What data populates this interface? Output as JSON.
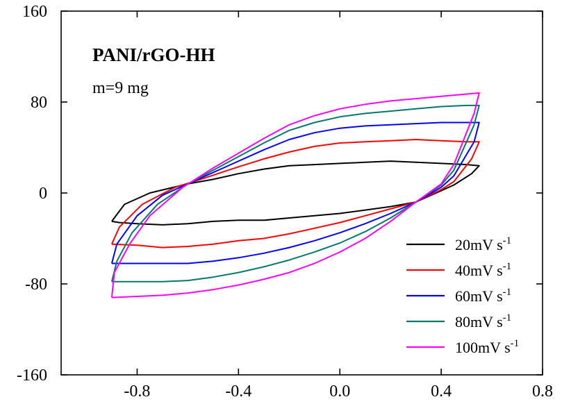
{
  "chart_data": {
    "type": "line",
    "title": "PANI/rGO-HH",
    "subtitle": "m=9 mg",
    "xlabel": "",
    "ylabel": "",
    "xlim": [
      -1.1,
      0.8
    ],
    "ylim": [
      -160,
      160
    ],
    "xticks": [
      -0.8,
      -0.4,
      0.0,
      0.4,
      0.8
    ],
    "xtick_labels": [
      "-0.8",
      "-0.4",
      "0.0",
      "0.4",
      "0.8"
    ],
    "yticks": [
      -160,
      -80,
      0,
      80,
      160
    ],
    "ytick_labels": [
      "-160",
      "-80",
      "0",
      "80",
      "160"
    ],
    "grid": false,
    "legend_position": "bottom-right",
    "series": [
      {
        "name": "20mV s",
        "superscript": "-1",
        "color": "#000000",
        "x": [
          -0.9,
          -0.85,
          -0.75,
          -0.6,
          -0.5,
          -0.4,
          -0.3,
          -0.2,
          -0.1,
          0.0,
          0.1,
          0.2,
          0.3,
          0.4,
          0.5,
          0.55,
          0.52,
          0.45,
          0.4,
          0.3,
          0.2,
          0.1,
          0.0,
          -0.1,
          -0.2,
          -0.3,
          -0.4,
          -0.5,
          -0.6,
          -0.7,
          -0.8,
          -0.87,
          -0.9
        ],
        "y": [
          -25,
          -10,
          0,
          8,
          12,
          17,
          21,
          24,
          25,
          26,
          27,
          28,
          27,
          26,
          25,
          24,
          17,
          7,
          2,
          -8,
          -12,
          -15,
          -18,
          -20,
          -22,
          -24,
          -24,
          -25,
          -27,
          -28,
          -27,
          -26,
          -25
        ]
      },
      {
        "name": "40mV s",
        "superscript": "-1",
        "color": "#ff0000",
        "x": [
          -0.9,
          -0.87,
          -0.78,
          -0.65,
          -0.55,
          -0.4,
          -0.3,
          -0.2,
          -0.1,
          0.0,
          0.1,
          0.2,
          0.3,
          0.4,
          0.5,
          0.55,
          0.52,
          0.45,
          0.4,
          0.3,
          0.2,
          0.1,
          0.0,
          -0.1,
          -0.2,
          -0.3,
          -0.4,
          -0.5,
          -0.6,
          -0.7,
          -0.8,
          -0.9
        ],
        "y": [
          -45,
          -30,
          -10,
          5,
          12,
          23,
          30,
          36,
          41,
          44,
          45,
          46,
          47,
          46,
          45,
          45,
          30,
          10,
          3,
          -8,
          -14,
          -20,
          -26,
          -31,
          -36,
          -40,
          -42,
          -45,
          -47,
          -48,
          -46,
          -45
        ]
      },
      {
        "name": "60mV s",
        "superscript": "-1",
        "color": "#0000ff",
        "x": [
          -0.9,
          -0.88,
          -0.8,
          -0.7,
          -0.6,
          -0.5,
          -0.4,
          -0.3,
          -0.2,
          -0.1,
          0.0,
          0.1,
          0.2,
          0.3,
          0.4,
          0.5,
          0.55,
          0.53,
          0.45,
          0.4,
          0.3,
          0.2,
          0.1,
          0.0,
          -0.1,
          -0.2,
          -0.3,
          -0.4,
          -0.5,
          -0.6,
          -0.7,
          -0.8,
          -0.9
        ],
        "y": [
          -62,
          -45,
          -20,
          -2,
          8,
          18,
          28,
          38,
          47,
          53,
          57,
          59,
          60,
          61,
          62,
          62,
          62,
          45,
          15,
          5,
          -8,
          -18,
          -27,
          -35,
          -42,
          -48,
          -53,
          -57,
          -60,
          -62,
          -62,
          -62,
          -62
        ]
      },
      {
        "name": "80mV s",
        "superscript": "-1",
        "color": "#00796b",
        "x": [
          -0.9,
          -0.88,
          -0.82,
          -0.72,
          -0.6,
          -0.5,
          -0.4,
          -0.3,
          -0.2,
          -0.1,
          0.0,
          0.1,
          0.2,
          0.3,
          0.4,
          0.5,
          0.55,
          0.53,
          0.45,
          0.4,
          0.3,
          0.2,
          0.1,
          0.0,
          -0.1,
          -0.2,
          -0.3,
          -0.4,
          -0.5,
          -0.6,
          -0.7,
          -0.8,
          -0.9
        ],
        "y": [
          -78,
          -60,
          -35,
          -10,
          8,
          20,
          32,
          44,
          55,
          62,
          67,
          70,
          72,
          74,
          76,
          77,
          77,
          60,
          20,
          7,
          -8,
          -22,
          -34,
          -44,
          -52,
          -59,
          -65,
          -70,
          -74,
          -77,
          -78,
          -78,
          -78
        ]
      },
      {
        "name": "100mV s",
        "superscript": "-1",
        "color": "#ff00ff",
        "x": [
          -0.9,
          -0.89,
          -0.83,
          -0.75,
          -0.62,
          -0.5,
          -0.4,
          -0.3,
          -0.2,
          -0.1,
          0.0,
          0.1,
          0.2,
          0.3,
          0.4,
          0.5,
          0.55,
          0.53,
          0.45,
          0.4,
          0.3,
          0.2,
          0.1,
          0.0,
          -0.1,
          -0.2,
          -0.3,
          -0.4,
          -0.5,
          -0.6,
          -0.7,
          -0.8,
          -0.9
        ],
        "y": [
          -92,
          -70,
          -45,
          -20,
          5,
          22,
          35,
          48,
          60,
          68,
          74,
          78,
          81,
          83,
          85,
          87,
          88,
          70,
          25,
          8,
          -8,
          -25,
          -40,
          -52,
          -62,
          -70,
          -76,
          -81,
          -85,
          -88,
          -90,
          -91,
          -92
        ]
      }
    ]
  }
}
